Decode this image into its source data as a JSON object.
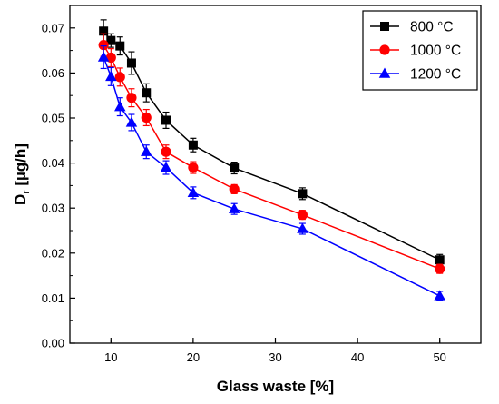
{
  "chart_data": {
    "type": "line",
    "xlabel": "Glass waste [%]",
    "ylabel_main": "D",
    "ylabel_sub": "r",
    "ylabel_rest": " [µg/h]",
    "xlim": [
      5,
      55
    ],
    "ylim": [
      0.0,
      0.075
    ],
    "xticks": [
      10,
      20,
      30,
      40,
      50
    ],
    "yticks": [
      0.0,
      0.01,
      0.02,
      0.03,
      0.04,
      0.05,
      0.06,
      0.07
    ],
    "ytick_labels": [
      "0.00",
      "0.01",
      "0.02",
      "0.03",
      "0.04",
      "0.05",
      "0.06",
      "0.07"
    ],
    "xtick_labels": [
      "10",
      "20",
      "30",
      "40",
      "50"
    ],
    "grid": false,
    "legend_position": "top-right",
    "series": [
      {
        "name": "800 °C",
        "color": "#000000",
        "marker": "square",
        "x": [
          9.1,
          10.0,
          11.1,
          12.5,
          14.3,
          16.7,
          20.0,
          25.0,
          33.3,
          50.0
        ],
        "y": [
          0.0693,
          0.0672,
          0.066,
          0.0622,
          0.0556,
          0.0495,
          0.044,
          0.0389,
          0.0332,
          0.0185
        ],
        "err": [
          0.0025,
          0.0015,
          0.002,
          0.0025,
          0.002,
          0.0018,
          0.0015,
          0.0013,
          0.0013,
          0.0012
        ]
      },
      {
        "name": "1000 °C",
        "color": "#ff0000",
        "marker": "circle",
        "x": [
          9.1,
          10.0,
          11.1,
          12.5,
          14.3,
          16.7,
          20.0,
          25.0,
          33.3,
          50.0
        ],
        "y": [
          0.0662,
          0.0634,
          0.0591,
          0.0545,
          0.0501,
          0.0425,
          0.039,
          0.0342,
          0.0285,
          0.0165
        ],
        "err": [
          0.0025,
          0.002,
          0.002,
          0.002,
          0.0018,
          0.0015,
          0.0013,
          0.001,
          0.001,
          0.001
        ]
      },
      {
        "name": "1200 °C",
        "color": "#0000ff",
        "marker": "triangle",
        "x": [
          9.1,
          10.0,
          11.1,
          12.5,
          14.3,
          16.7,
          20.0,
          25.0,
          33.3,
          50.0
        ],
        "y": [
          0.0635,
          0.0592,
          0.0525,
          0.049,
          0.0425,
          0.039,
          0.0334,
          0.0298,
          0.0254,
          0.0105
        ],
        "err": [
          0.0025,
          0.002,
          0.002,
          0.0018,
          0.0015,
          0.0015,
          0.0013,
          0.0012,
          0.0012,
          0.001
        ]
      }
    ]
  }
}
